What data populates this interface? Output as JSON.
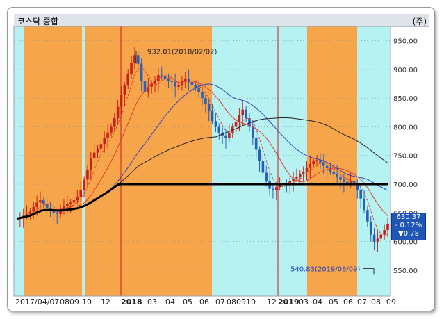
{
  "window": {
    "title": "코스닥 종합",
    "tag": "(주)"
  },
  "price_box": {
    "last": "630.37",
    "change_pct": "- 0.12%",
    "change": "▼0.78"
  },
  "annotations": {
    "high": "932.01(2018/02/02)",
    "low": "540.83(2019/08/09)"
  },
  "colors": {
    "orange_band": "#f7a54b",
    "cyan_band": "#b6f2f2",
    "up_candle": "#c8211b",
    "down_candle": "#2760b8",
    "ma_short": "#e23a2a",
    "ma_mid": "#3040c0",
    "ma_long": "#000000",
    "price_box": "#1f56b6"
  },
  "chart_data": {
    "type": "candlestick",
    "ylim": [
      505,
      975
    ],
    "y_ticks": [
      "950.00",
      "900.00",
      "850.00",
      "800.00",
      "750.00",
      "700.00",
      "650.00",
      "600.00",
      "550.00"
    ],
    "y_tick_values": [
      950,
      900,
      850,
      800,
      750,
      700,
      650,
      600,
      550
    ],
    "x_labels": [
      {
        "text": "2017/04/07",
        "bold": false
      },
      {
        "text": "08",
        "bold": false
      },
      {
        "text": "09",
        "bold": false
      },
      {
        "text": "10",
        "bold": false
      },
      {
        "text": "12",
        "bold": false
      },
      {
        "text": "2018",
        "bold": true
      },
      {
        "text": "03",
        "bold": false
      },
      {
        "text": "04",
        "bold": false
      },
      {
        "text": "05",
        "bold": false
      },
      {
        "text": "06",
        "bold": false
      },
      {
        "text": "07",
        "bold": false
      },
      {
        "text": "08",
        "bold": false
      },
      {
        "text": "09",
        "bold": false
      },
      {
        "text": "10",
        "bold": false
      },
      {
        "text": "12",
        "bold": false
      },
      {
        "text": "2019",
        "bold": true
      },
      {
        "text": "03",
        "bold": false
      },
      {
        "text": "04",
        "bold": false
      },
      {
        "text": "05",
        "bold": false
      },
      {
        "text": "06",
        "bold": false
      },
      {
        "text": "07",
        "bold": false
      },
      {
        "text": "08",
        "bold": false
      },
      {
        "text": "09",
        "bold": false
      }
    ],
    "high_value": 932.01,
    "low_value": 540.83,
    "last_value": 630.37,
    "close_series": [
      640,
      642,
      645,
      648,
      652,
      660,
      668,
      672,
      665,
      658,
      655,
      650,
      648,
      655,
      662,
      665,
      668,
      672,
      678,
      690,
      708,
      725,
      745,
      755,
      762,
      770,
      780,
      790,
      800,
      815,
      835,
      855,
      872,
      892,
      912,
      925,
      910,
      880,
      860,
      870,
      875,
      880,
      890,
      888,
      884,
      880,
      878,
      870,
      872,
      880,
      884,
      878,
      872,
      868,
      860,
      850,
      840,
      828,
      810,
      800,
      790,
      785,
      780,
      790,
      800,
      808,
      820,
      830,
      815,
      800,
      780,
      760,
      740,
      720,
      705,
      692,
      690,
      695,
      700,
      702,
      698,
      705,
      710,
      712,
      718,
      722,
      728,
      735,
      740,
      742,
      738,
      732,
      728,
      722,
      718,
      712,
      708,
      704,
      702,
      705,
      700,
      690,
      675,
      655,
      635,
      612,
      600,
      605,
      612,
      620,
      630
    ]
  }
}
